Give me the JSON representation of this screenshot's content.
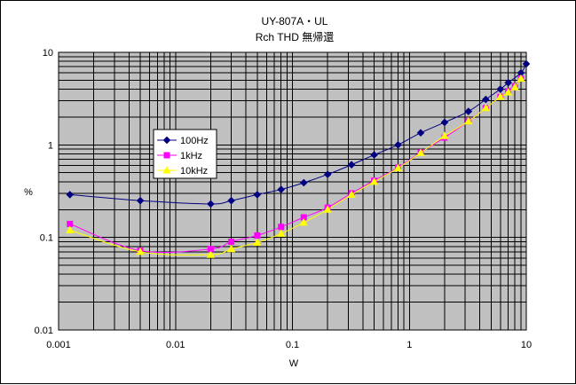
{
  "chart_data": {
    "type": "line",
    "title": "UY-807A・UL",
    "subtitle": "Rch THD 無帰還",
    "xlabel": "W",
    "ylabel": "%",
    "xscale": "log",
    "yscale": "log",
    "xlim": [
      0.001,
      10
    ],
    "ylim": [
      0.01,
      10
    ],
    "grid": true,
    "legend_position": "left",
    "x_tick_labels": [
      "0.001",
      "0.01",
      "0.1",
      "1",
      "10"
    ],
    "y_tick_labels": [
      "0.01",
      "0.1",
      "1",
      "10"
    ],
    "plot_background": "#c0c0c0",
    "series": [
      {
        "name": "100Hz",
        "color": "#000080",
        "marker": "diamond",
        "x": [
          0.00125,
          0.005,
          0.02,
          0.03,
          0.05,
          0.08,
          0.125,
          0.2,
          0.32,
          0.5,
          0.8,
          1.25,
          2.0,
          3.2,
          4.5,
          6.0,
          7.0,
          9.0,
          10.0
        ],
        "y": [
          0.29,
          0.25,
          0.23,
          0.25,
          0.29,
          0.33,
          0.39,
          0.48,
          0.61,
          0.78,
          1.0,
          1.35,
          1.75,
          2.3,
          3.1,
          4.0,
          4.7,
          6.0,
          7.5
        ]
      },
      {
        "name": "1kHz",
        "color": "#ff00ff",
        "marker": "square",
        "x": [
          0.00125,
          0.005,
          0.02,
          0.03,
          0.05,
          0.08,
          0.125,
          0.2,
          0.32,
          0.5,
          0.8,
          1.25,
          2.0,
          3.2,
          4.5,
          6.0,
          7.0,
          8.0,
          9.0
        ],
        "y": [
          0.14,
          0.072,
          0.075,
          0.09,
          0.105,
          0.13,
          0.165,
          0.21,
          0.3,
          0.41,
          0.57,
          0.83,
          1.2,
          1.8,
          2.5,
          3.3,
          3.8,
          4.3,
          5.2
        ]
      },
      {
        "name": "10kHz",
        "color": "#ffff00",
        "marker": "triangle",
        "x": [
          0.00125,
          0.005,
          0.02,
          0.03,
          0.05,
          0.08,
          0.125,
          0.2,
          0.32,
          0.5,
          0.8,
          1.25,
          2.0,
          3.2,
          4.5,
          6.0,
          7.0,
          8.0,
          9.0
        ],
        "y": [
          0.12,
          0.07,
          0.065,
          0.075,
          0.088,
          0.11,
          0.145,
          0.2,
          0.29,
          0.4,
          0.56,
          0.82,
          1.25,
          1.8,
          2.5,
          3.3,
          3.7,
          4.2,
          5.2
        ]
      }
    ]
  }
}
